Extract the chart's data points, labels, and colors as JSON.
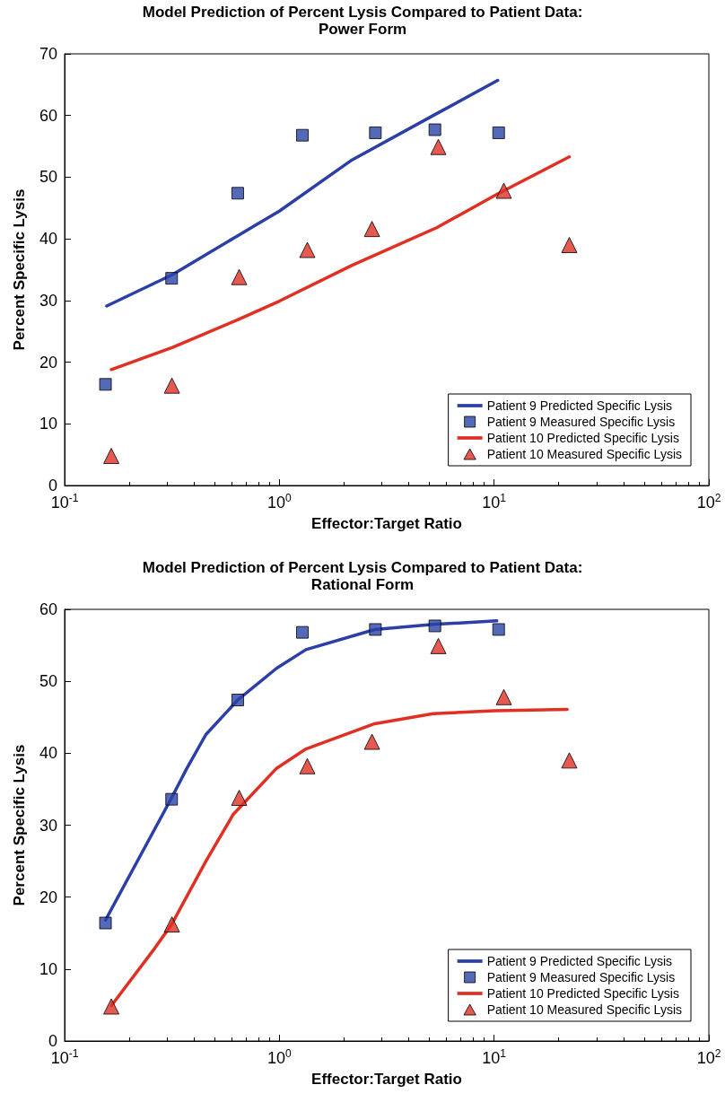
{
  "chart_data": [
    {
      "type": "line",
      "title": "Model Prediction of Percent Lysis Compared to Patient Data:",
      "subtitle": "Power Form",
      "xlabel": "Effector:Target Ratio",
      "ylabel": "Percent Specific Lysis",
      "log": "x",
      "grid": false,
      "legend": "bottom right",
      "xlim": [
        0.1,
        100
      ],
      "xticks": [
        {
          "value": 0.1,
          "label": "10$^{-1}$"
        },
        {
          "value": 1,
          "label": "10$^{0}$"
        },
        {
          "value": 10,
          "label": "10$^{1}$"
        },
        {
          "value": 100,
          "label": "10$^{2}$"
        }
      ],
      "ylim": [
        0,
        70
      ],
      "yticks": [
        0,
        10,
        20,
        30,
        40,
        50,
        60,
        70
      ],
      "series": [
        {
          "name": "Patient 9 Predicted Specific Lysis",
          "type": "line",
          "marker": "none",
          "color": "#2b3fa6",
          "x": [
            0.157,
            0.318,
            0.632,
            1,
            2.18,
            5.4,
            10.4
          ],
          "values": [
            29.1,
            34.2,
            40.4,
            44.5,
            52.8,
            60.3,
            65.7
          ]
        },
        {
          "name": "Patient 9 Measured Specific Lysis",
          "type": "scatter",
          "marker": "square",
          "color": "#2b43a8",
          "x": [
            0.155,
            0.315,
            0.64,
            1.28,
            2.8,
            5.3,
            10.5
          ],
          "values": [
            16.4,
            33.6,
            47.4,
            56.8,
            57.2,
            57.7,
            57.2
          ]
        },
        {
          "name": "Patient 10 Predicted Specific Lysis",
          "type": "line",
          "marker": "none",
          "color": "#e03024",
          "x": [
            0.165,
            0.318,
            0.632,
            1,
            2.18,
            5.4,
            10.4,
            22.4
          ],
          "values": [
            18.8,
            22.4,
            26.8,
            29.9,
            35.7,
            41.8,
            47.3,
            53.3
          ]
        },
        {
          "name": "Patient 10 Measured Specific Lysis",
          "type": "scatter",
          "marker": "triangle",
          "color": "#e03024",
          "x": [
            0.165,
            0.316,
            0.65,
            1.35,
            2.7,
            5.5,
            11.1,
            22.4
          ],
          "values": [
            4.8,
            16.2,
            33.8,
            38.2,
            41.6,
            54.9,
            47.8,
            39.0
          ]
        }
      ]
    },
    {
      "type": "line",
      "title": "Model Prediction of Percent Lysis Compared to Patient Data:",
      "subtitle": "Rational Form",
      "xlabel": "Effector:Target Ratio",
      "ylabel": "Percent Specific Lysis",
      "log": "x",
      "grid": false,
      "legend": "bottom right",
      "xlim": [
        0.1,
        100
      ],
      "xticks": [
        {
          "value": 0.1,
          "label": "10$^{-1}$"
        },
        {
          "value": 1,
          "label": "10$^{0}$"
        },
        {
          "value": 10,
          "label": "10$^{1}$"
        },
        {
          "value": 100,
          "label": "10$^{2}$"
        }
      ],
      "ylim": [
        0,
        60
      ],
      "yticks": [
        0,
        10,
        20,
        30,
        40,
        50,
        60
      ],
      "series": [
        {
          "name": "Patient 9 Predicted Specific Lysis",
          "type": "line",
          "marker": "none",
          "color": "#2b3fa6",
          "x": [
            0.155,
            0.315,
            0.371,
            0.455,
            0.64,
            0.97,
            1.33,
            2.78,
            5.2,
            10.3
          ],
          "values": [
            16.8,
            33.8,
            37.9,
            42.6,
            47.4,
            51.8,
            54.4,
            57.2,
            57.9,
            58.4
          ]
        },
        {
          "name": "Patient 9 Measured Specific Lysis",
          "type": "scatter",
          "marker": "square",
          "color": "#2b43a8",
          "x": [
            0.155,
            0.315,
            0.64,
            1.28,
            2.8,
            5.3,
            10.5
          ],
          "values": [
            16.4,
            33.6,
            47.4,
            56.8,
            57.2,
            57.7,
            57.2
          ]
        },
        {
          "name": "Patient 10 Predicted Specific Lysis",
          "type": "line",
          "marker": "none",
          "color": "#e03024",
          "x": [
            0.165,
            0.263,
            0.315,
            0.455,
            0.61,
            0.97,
            1.33,
            2.78,
            5.2,
            10,
            21.9
          ],
          "values": [
            4.9,
            12.9,
            16.2,
            25.0,
            31.5,
            37.9,
            40.6,
            44.1,
            45.5,
            45.9,
            46.1
          ]
        },
        {
          "name": "Patient 10 Measured Specific Lysis",
          "type": "scatter",
          "marker": "triangle",
          "color": "#e03024",
          "x": [
            0.165,
            0.316,
            0.65,
            1.35,
            2.7,
            5.5,
            11.1,
            22.4
          ],
          "values": [
            4.8,
            16.2,
            33.8,
            38.2,
            41.6,
            54.9,
            47.8,
            39.0
          ]
        }
      ]
    }
  ]
}
